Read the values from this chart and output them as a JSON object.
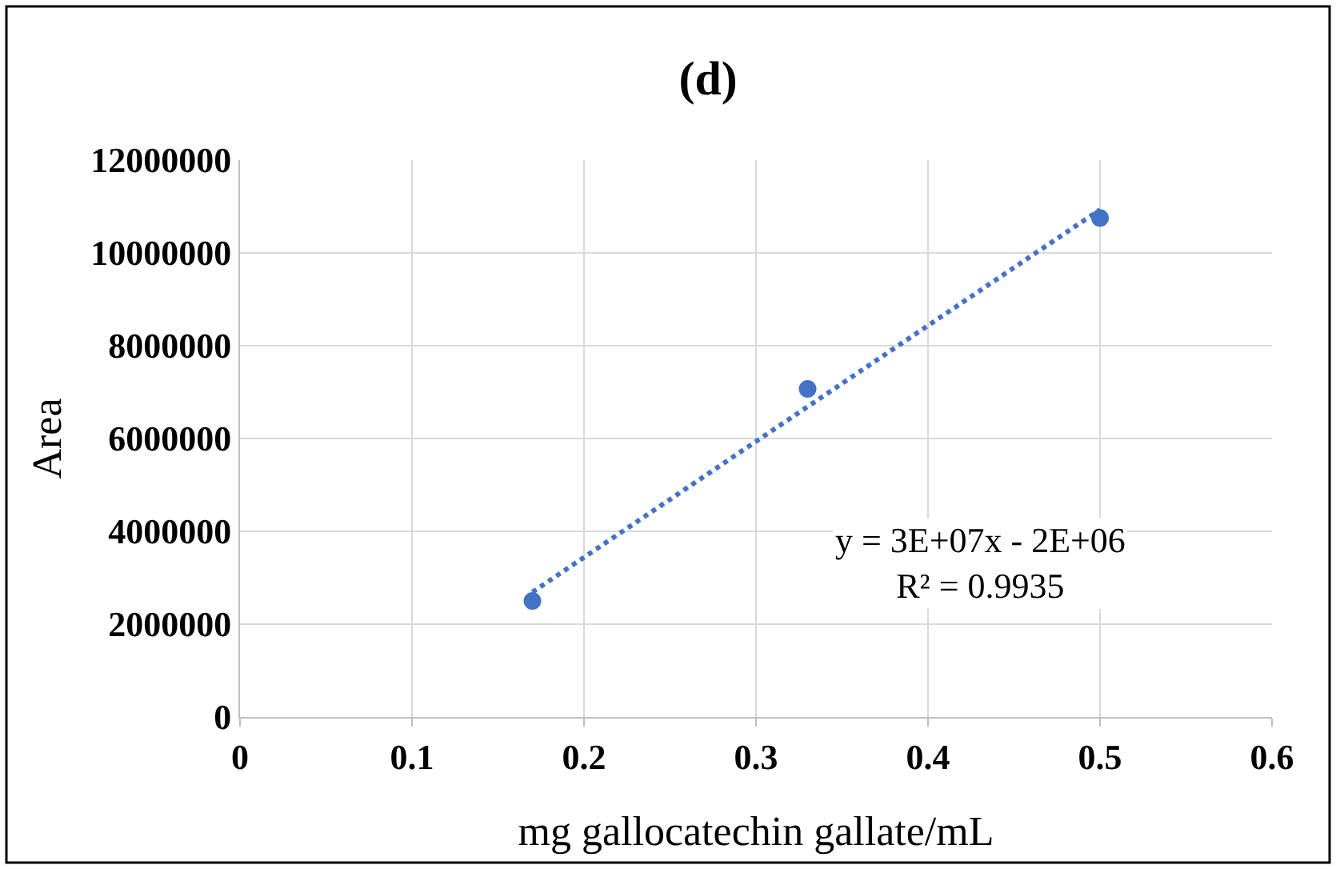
{
  "chart_data": {
    "type": "scatter",
    "title": "(d)",
    "xlabel": "mg gallocatechin gallate/mL",
    "ylabel": "Area",
    "x": [
      0.17,
      0.33,
      0.5
    ],
    "series": [
      {
        "color": "#4472c4",
        "values": [
          2500000,
          7070000,
          10750000
        ],
        "marker": "circle"
      },
      {
        "type": "line",
        "color": "#4472c4",
        "x": [
          0.17,
          0.5
        ],
        "values": [
          2690000,
          10930000
        ],
        "line_style": "dotted",
        "marker": "none"
      }
    ],
    "annotations": [
      "y = 3E+07x - 2E+06\nR² = 0.9935"
    ],
    "xlim": [
      0,
      0.6
    ],
    "xticks": [
      0,
      0.1,
      0.2,
      0.3,
      0.4,
      0.5,
      0.6
    ],
    "ylim": [
      0,
      12000000
    ],
    "yticks": [
      0,
      2000000,
      4000000,
      6000000,
      8000000,
      10000000,
      12000000
    ],
    "grid": true
  }
}
